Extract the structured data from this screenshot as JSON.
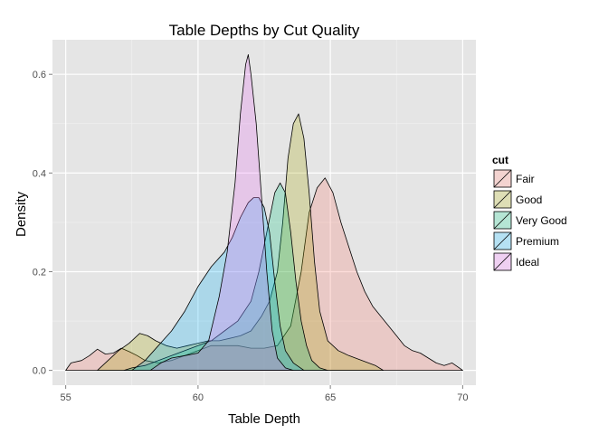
{
  "chart_data": {
    "type": "area",
    "title": "Table Depths by Cut Quality",
    "xlabel": "Table Depth",
    "ylabel": "Density",
    "xlim": [
      54.5,
      70.5
    ],
    "ylim": [
      -0.03,
      0.67
    ],
    "x_ticks": [
      55,
      60,
      65,
      70
    ],
    "y_ticks": [
      0.0,
      0.2,
      0.4,
      0.6
    ],
    "y_tick_labels": [
      "0.0",
      "0.2",
      "0.4",
      "0.6"
    ],
    "grid": true,
    "legend": {
      "title": "cut",
      "position": "right"
    },
    "series": [
      {
        "name": "Fair",
        "color": "#F8766D",
        "points": [
          [
            55.0,
            0.0
          ],
          [
            55.2,
            0.015
          ],
          [
            55.6,
            0.02
          ],
          [
            55.9,
            0.03
          ],
          [
            56.2,
            0.043
          ],
          [
            56.5,
            0.033
          ],
          [
            56.8,
            0.035
          ],
          [
            57.1,
            0.045
          ],
          [
            57.4,
            0.038
          ],
          [
            57.7,
            0.03
          ],
          [
            58.0,
            0.02
          ],
          [
            58.5,
            0.015
          ],
          [
            59.0,
            0.02
          ],
          [
            59.5,
            0.03
          ],
          [
            60.0,
            0.04
          ],
          [
            60.5,
            0.05
          ],
          [
            61.0,
            0.05
          ],
          [
            61.5,
            0.05
          ],
          [
            62.0,
            0.045
          ],
          [
            62.5,
            0.045
          ],
          [
            63.0,
            0.05
          ],
          [
            63.5,
            0.09
          ],
          [
            63.9,
            0.2
          ],
          [
            64.2,
            0.32
          ],
          [
            64.5,
            0.37
          ],
          [
            64.8,
            0.39
          ],
          [
            65.1,
            0.36
          ],
          [
            65.4,
            0.3
          ],
          [
            65.7,
            0.25
          ],
          [
            66.0,
            0.2
          ],
          [
            66.3,
            0.16
          ],
          [
            66.6,
            0.13
          ],
          [
            66.9,
            0.11
          ],
          [
            67.2,
            0.09
          ],
          [
            67.5,
            0.07
          ],
          [
            67.8,
            0.05
          ],
          [
            68.1,
            0.04
          ],
          [
            68.4,
            0.035
          ],
          [
            68.7,
            0.025
          ],
          [
            69.0,
            0.015
          ],
          [
            69.3,
            0.01
          ],
          [
            69.6,
            0.015
          ],
          [
            70.0,
            0.0
          ]
        ]
      },
      {
        "name": "Good",
        "color": "#A3A500",
        "points": [
          [
            56.2,
            0.0
          ],
          [
            56.6,
            0.02
          ],
          [
            57.0,
            0.04
          ],
          [
            57.4,
            0.055
          ],
          [
            57.8,
            0.075
          ],
          [
            58.1,
            0.07
          ],
          [
            58.4,
            0.06
          ],
          [
            58.8,
            0.05
          ],
          [
            59.2,
            0.045
          ],
          [
            59.6,
            0.05
          ],
          [
            60.0,
            0.055
          ],
          [
            60.4,
            0.06
          ],
          [
            60.8,
            0.06
          ],
          [
            61.2,
            0.065
          ],
          [
            61.6,
            0.07
          ],
          [
            62.0,
            0.08
          ],
          [
            62.4,
            0.11
          ],
          [
            62.7,
            0.14
          ],
          [
            63.0,
            0.2
          ],
          [
            63.2,
            0.3
          ],
          [
            63.4,
            0.43
          ],
          [
            63.6,
            0.5
          ],
          [
            63.8,
            0.52
          ],
          [
            64.0,
            0.47
          ],
          [
            64.2,
            0.36
          ],
          [
            64.4,
            0.22
          ],
          [
            64.6,
            0.12
          ],
          [
            64.9,
            0.06
          ],
          [
            65.3,
            0.04
          ],
          [
            65.7,
            0.03
          ],
          [
            66.2,
            0.02
          ],
          [
            66.7,
            0.01
          ],
          [
            67.0,
            0.0
          ]
        ]
      },
      {
        "name": "Very Good",
        "color": "#00BF7D",
        "points": [
          [
            57.2,
            0.0
          ],
          [
            57.5,
            0.005
          ],
          [
            58.0,
            0.01
          ],
          [
            58.5,
            0.02
          ],
          [
            59.0,
            0.03
          ],
          [
            59.5,
            0.04
          ],
          [
            60.0,
            0.05
          ],
          [
            60.5,
            0.06
          ],
          [
            61.0,
            0.08
          ],
          [
            61.5,
            0.1
          ],
          [
            62.0,
            0.14
          ],
          [
            62.3,
            0.2
          ],
          [
            62.6,
            0.28
          ],
          [
            62.9,
            0.36
          ],
          [
            63.1,
            0.38
          ],
          [
            63.3,
            0.36
          ],
          [
            63.5,
            0.28
          ],
          [
            63.7,
            0.18
          ],
          [
            63.9,
            0.1
          ],
          [
            64.1,
            0.05
          ],
          [
            64.3,
            0.02
          ],
          [
            64.6,
            0.005
          ],
          [
            64.9,
            0.0
          ]
        ]
      },
      {
        "name": "Premium",
        "color": "#00B0F6",
        "points": [
          [
            57.5,
            0.0
          ],
          [
            58.0,
            0.02
          ],
          [
            58.5,
            0.05
          ],
          [
            59.0,
            0.08
          ],
          [
            59.5,
            0.12
          ],
          [
            60.0,
            0.17
          ],
          [
            60.5,
            0.21
          ],
          [
            61.0,
            0.24
          ],
          [
            61.3,
            0.27
          ],
          [
            61.6,
            0.31
          ],
          [
            61.9,
            0.34
          ],
          [
            62.1,
            0.35
          ],
          [
            62.3,
            0.35
          ],
          [
            62.5,
            0.33
          ],
          [
            62.7,
            0.28
          ],
          [
            62.9,
            0.18
          ],
          [
            63.1,
            0.09
          ],
          [
            63.3,
            0.04
          ],
          [
            63.6,
            0.015
          ],
          [
            64.0,
            0.0
          ]
        ]
      },
      {
        "name": "Ideal",
        "color": "#E76BF3",
        "points": [
          [
            58.2,
            0.0
          ],
          [
            58.6,
            0.015
          ],
          [
            59.0,
            0.025
          ],
          [
            59.5,
            0.03
          ],
          [
            60.0,
            0.035
          ],
          [
            60.4,
            0.06
          ],
          [
            60.8,
            0.15
          ],
          [
            61.1,
            0.24
          ],
          [
            61.4,
            0.38
          ],
          [
            61.6,
            0.52
          ],
          [
            61.8,
            0.62
          ],
          [
            61.9,
            0.64
          ],
          [
            62.0,
            0.6
          ],
          [
            62.2,
            0.5
          ],
          [
            62.4,
            0.35
          ],
          [
            62.6,
            0.2
          ],
          [
            62.8,
            0.08
          ],
          [
            63.0,
            0.025
          ],
          [
            63.3,
            0.005
          ],
          [
            63.6,
            0.0
          ]
        ]
      }
    ]
  }
}
